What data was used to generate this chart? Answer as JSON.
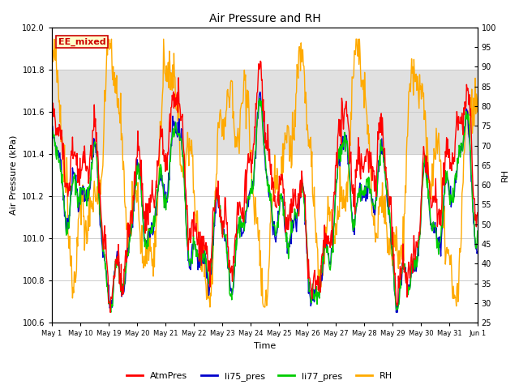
{
  "title": "Air Pressure and RH",
  "xlabel": "Time",
  "ylabel_left": "Air Pressure (kPa)",
  "ylabel_right": "RH",
  "annotation": "EE_mixed",
  "ylim_left": [
    100.6,
    102.0
  ],
  "ylim_right": [
    25,
    100
  ],
  "yticks_left": [
    100.6,
    100.8,
    101.0,
    101.2,
    101.4,
    101.6,
    101.8,
    102.0
  ],
  "yticks_right": [
    25,
    30,
    35,
    40,
    45,
    50,
    55,
    60,
    65,
    70,
    75,
    80,
    85,
    90,
    95,
    100
  ],
  "xtick_labels": [
    "May 1",
    "May 10",
    "May 19",
    "May 20",
    "May 21",
    "May 22",
    "May 23",
    "May 24",
    "May 25",
    "May 26",
    "May 27",
    "May 28",
    "May 29",
    "May 30",
    "May 31",
    "Jun 1"
  ],
  "colors": {
    "AtmPres": "#ff0000",
    "li75_pres": "#0000cc",
    "li77_pres": "#00cc00",
    "RH": "#ffaa00"
  },
  "legend_entries": [
    "AtmPres",
    "li75_pres",
    "li77_pres",
    "RH"
  ],
  "background_color": "#ffffff",
  "shaded_region": [
    101.4,
    101.8
  ],
  "shaded_color": "#e0e0e0",
  "annotation_box_edgecolor": "#cc0000",
  "annotation_box_facecolor": "#ffffcc",
  "annotation_text_color": "#cc0000"
}
